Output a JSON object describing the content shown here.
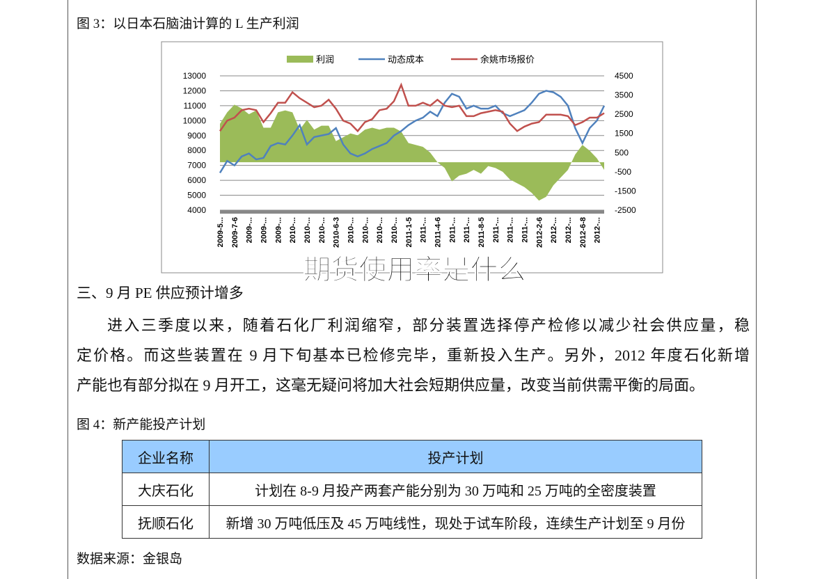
{
  "figure3": {
    "caption": "图 3：以日本石脑油计算的 L 生产利润",
    "chart": {
      "type": "line",
      "categories": [
        "2009-5...",
        null,
        "2009-7-6",
        null,
        "2009-...",
        null,
        "2009-...",
        null,
        "2009-...",
        null,
        "2010-...",
        null,
        "2010-...",
        null,
        "2010-...",
        null,
        "2010-6-3",
        null,
        "2010-...",
        null,
        "2010-...",
        null,
        "2010-...",
        null,
        "2010-...",
        null,
        "2011-1-5",
        null,
        "2011-...",
        null,
        "2011-4-6",
        null,
        "2011-...",
        null,
        "2011-...",
        null,
        "2011-8-5",
        null,
        "2011-...",
        null,
        "2011-...",
        null,
        "2011-...",
        null,
        "2012-2-6",
        null,
        "2012-...",
        null,
        "2012-...",
        null,
        "2012-6-8",
        null,
        "2012-...",
        null
      ],
      "series": [
        {
          "name": "利润",
          "type": "area",
          "axis": "y2",
          "color": "#9bbb59",
          "values": [
            2000,
            2600,
            3000,
            2800,
            2500,
            2700,
            1800,
            1800,
            2600,
            2700,
            2600,
            1700,
            2200,
            1700,
            1900,
            1900,
            1100,
            1300,
            1500,
            1400,
            1700,
            1800,
            1700,
            1800,
            1800,
            1600,
            1000,
            900,
            800,
            500,
            0,
            -300,
            -1000,
            -700,
            -600,
            -400,
            -600,
            -200,
            -300,
            -500,
            -900,
            -1100,
            -1300,
            -1600,
            -2000,
            -1800,
            -1200,
            -800,
            -400,
            400,
            900,
            600,
            200,
            -400
          ]
        },
        {
          "name": "动态成本",
          "color": "#4f81bd",
          "values": [
            6500,
            7300,
            7000,
            7600,
            7800,
            7400,
            7500,
            8300,
            8500,
            8400,
            9000,
            9700,
            8400,
            8900,
            9000,
            9100,
            9500,
            8400,
            7800,
            7600,
            7800,
            8100,
            8300,
            8500,
            9000,
            9300,
            9700,
            10000,
            10200,
            10600,
            10300,
            11200,
            11800,
            11600,
            10800,
            11000,
            10800,
            10800,
            11000,
            10500,
            10300,
            10500,
            10700,
            11200,
            11800,
            12000,
            11900,
            11600,
            11000,
            9500,
            8500,
            9500,
            10000,
            11000
          ]
        },
        {
          "name": "余姚市场报价",
          "color": "#c0504d",
          "values": [
            9300,
            10000,
            10200,
            10700,
            10800,
            10700,
            9900,
            10500,
            11200,
            11200,
            11900,
            11500,
            11200,
            10900,
            11000,
            11400,
            10800,
            10000,
            9800,
            9300,
            9900,
            10100,
            10700,
            10800,
            11300,
            12400,
            11000,
            11000,
            11200,
            11000,
            11400,
            11000,
            10900,
            11000,
            10300,
            10300,
            10500,
            10600,
            10700,
            10600,
            9800,
            9300,
            9600,
            9800,
            9900,
            10400,
            10400,
            10400,
            10300,
            9700,
            9900,
            10200,
            10200,
            10500
          ]
        }
      ],
      "ylim": [
        4000,
        13000
      ],
      "yticks": [
        4000,
        5000,
        6000,
        7000,
        8000,
        9000,
        10000,
        11000,
        12000,
        13000
      ],
      "y2lim": [
        -2500,
        4500
      ],
      "y2ticks": [
        -2500,
        -1500,
        -500,
        500,
        1500,
        2500,
        3500,
        4500
      ],
      "grid": true
    }
  },
  "overlay_title": "期货使用率是什么",
  "section_heading": "三、9 月 PE 供应预计增多",
  "paragraph_lines": [
    "进入三季度以来，随着石化厂利润缩窄，部分装置选择停产检修以减少社会供应量，稳",
    "定价格。而这些装置在 9 月下旬基本已检修完毕，重新投入生产。另外，2012 年度石化新增",
    "产能也有部分拟在 9 月开工，这毫无疑问将加大社会短期供应量，改变当前供需平衡的局面。"
  ],
  "figure4_caption": "图 4：新产能投产计划",
  "table": {
    "header": [
      "企业名称",
      "投产计划"
    ],
    "rows": [
      [
        "大庆石化",
        "计划在 8-9 月投产两套产能分别为 30 万吨和 25 万吨的全密度装置"
      ],
      [
        "抚顺石化",
        "新增 30 万吨低压及 45 万吨线性，现处于试车阶段，连续生产计划至 9 月份"
      ]
    ]
  },
  "source": "数据来源：金银岛"
}
